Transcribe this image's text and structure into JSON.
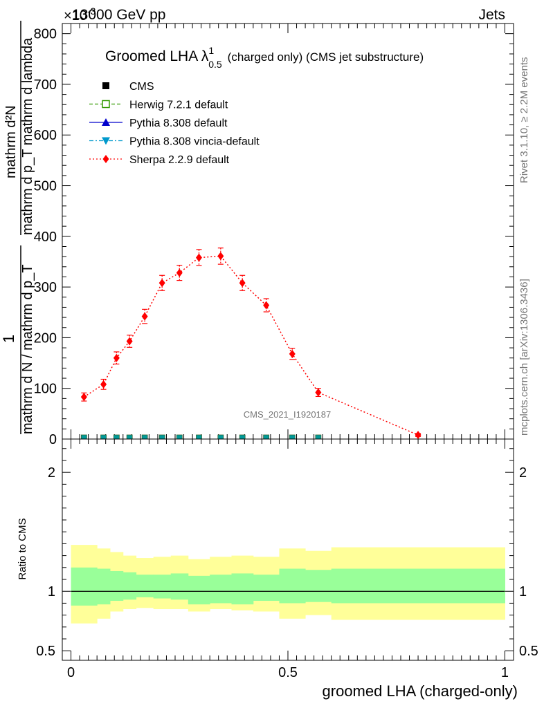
{
  "header": {
    "energy": "13000 GeV pp",
    "category": "Jets",
    "exponent": "×10",
    "exponent_power": "-3"
  },
  "plot_title": {
    "prefix": "Groomed LHA ",
    "symbol": "λ",
    "sup": "1",
    "sub": "0.5",
    "suffix": "(charged only) (CMS jet substructure)"
  },
  "ylabel_main": {
    "numerator": "mathrm d²N",
    "denominator": "mathrm d p_T mathrm d lambda",
    "lhs_numerator": "1",
    "lhs_denominator": "mathrm d N / mathrm d p_T"
  },
  "side_labels": {
    "rivet": "Rivet 3.1.10, ≥ 2.2M events",
    "mcplots": "mcplots.cern.ch [arXiv:1306.3436]"
  },
  "watermark": "CMS_2021_I1920187",
  "ratio_ylabel": "Ratio to CMS",
  "xlabel": "groomed LHA (charged-only)",
  "legend": [
    {
      "name": "CMS",
      "color": "#000000",
      "marker": "square-filled",
      "line": "none"
    },
    {
      "name": "Herwig 7.2.1 default",
      "color": "#339900",
      "marker": "square-open",
      "line": "dashed"
    },
    {
      "name": "Pythia 8.308 default",
      "color": "#0000cc",
      "marker": "triangle-up",
      "line": "solid"
    },
    {
      "name": "Pythia 8.308 vincia-default",
      "color": "#0099cc",
      "marker": "triangle-down",
      "line": "dashdot"
    },
    {
      "name": "Sherpa 2.2.9 default",
      "color": "#ff0000",
      "marker": "diamond",
      "line": "dotted"
    }
  ],
  "colors": {
    "band_inner": "#99ff99",
    "band_outer": "#ffff99",
    "sherpa": "#ff0000",
    "flat_markers": "#009999"
  },
  "chart_data": [
    {
      "type": "line",
      "panel": "main",
      "xlim": [
        -0.02,
        1.02
      ],
      "ylim": [
        0,
        820
      ],
      "y_scale_note": "×10^-3",
      "yticks": [
        0,
        100,
        200,
        300,
        400,
        500,
        600,
        700,
        800
      ],
      "ytick_labels": [
        "0",
        "100",
        "200",
        "300",
        "400",
        "500",
        "600",
        "700",
        "800"
      ],
      "series": [
        {
          "name": "Sherpa 2.2.9 default",
          "x": [
            0.03,
            0.075,
            0.105,
            0.135,
            0.17,
            0.21,
            0.25,
            0.295,
            0.345,
            0.395,
            0.45,
            0.51,
            0.57,
            0.8
          ],
          "values": [
            83,
            108,
            160,
            193,
            242,
            308,
            328,
            358,
            361,
            308,
            264,
            168,
            92,
            8
          ],
          "errors": [
            8,
            10,
            12,
            12,
            14,
            15,
            15,
            16,
            16,
            15,
            13,
            11,
            8,
            3
          ]
        },
        {
          "name": "CMS / Herwig / Pythia (near zero)",
          "x": [
            0.03,
            0.075,
            0.105,
            0.135,
            0.17,
            0.21,
            0.25,
            0.295,
            0.345,
            0.395,
            0.45,
            0.51,
            0.57
          ],
          "values": [
            0,
            0,
            0,
            0,
            0,
            0,
            0,
            0,
            0,
            0,
            0,
            0,
            0
          ]
        }
      ]
    },
    {
      "type": "area",
      "panel": "ratio",
      "xlim": [
        -0.02,
        1.02
      ],
      "ylim": [
        0.42,
        2.28
      ],
      "yticks": [
        0.5,
        1,
        2
      ],
      "ytick_labels": [
        "0.5",
        "1",
        "2"
      ],
      "xticks": [
        0,
        0.5,
        1
      ],
      "xtick_labels": [
        "0",
        "0.5",
        "1"
      ],
      "bin_edges": [
        0.0,
        0.06,
        0.09,
        0.12,
        0.15,
        0.19,
        0.23,
        0.27,
        0.32,
        0.37,
        0.42,
        0.48,
        0.54,
        0.6,
        1.0
      ],
      "inner_upper": [
        1.2,
        1.19,
        1.17,
        1.16,
        1.14,
        1.14,
        1.15,
        1.13,
        1.14,
        1.15,
        1.14,
        1.19,
        1.18,
        1.19
      ],
      "inner_lower": [
        0.88,
        0.89,
        0.92,
        0.93,
        0.95,
        0.94,
        0.93,
        0.89,
        0.9,
        0.89,
        0.92,
        0.9,
        0.91,
        0.9
      ],
      "outer_upper": [
        1.39,
        1.36,
        1.33,
        1.3,
        1.28,
        1.29,
        1.3,
        1.27,
        1.29,
        1.3,
        1.29,
        1.36,
        1.34,
        1.37
      ],
      "outer_lower": [
        0.73,
        0.77,
        0.83,
        0.85,
        0.86,
        0.85,
        0.85,
        0.83,
        0.85,
        0.84,
        0.83,
        0.77,
        0.8,
        0.76
      ],
      "reference_line": 1
    }
  ]
}
